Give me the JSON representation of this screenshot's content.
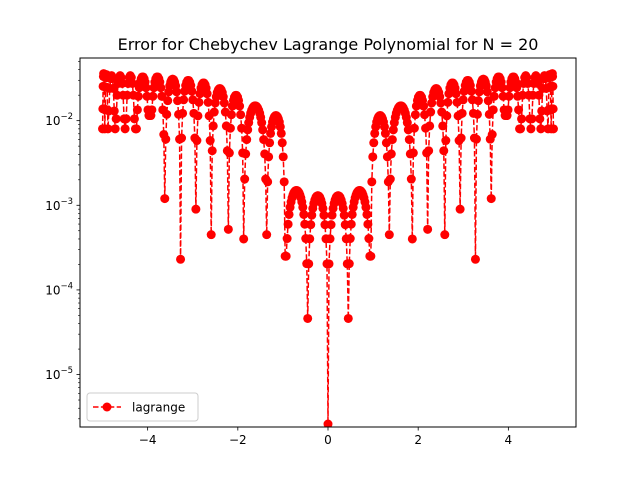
{
  "chart_data": {
    "type": "line",
    "title": "Error for Chebychev Lagrange Polynomial for N = 20",
    "xlabel": "",
    "ylabel": "",
    "xlim": [
      -5.5,
      5.5
    ],
    "ylim": [
      2.4e-06,
      0.055
    ],
    "yscale": "log",
    "x_ticks": [
      -4,
      -2,
      0,
      2,
      4
    ],
    "x_tick_labels": [
      "−4",
      "−2",
      "0",
      "2",
      "4"
    ],
    "y_ticks": [
      1e-05,
      0.0001,
      0.001,
      0.01
    ],
    "y_tick_labels": [
      "10",
      "10",
      "10",
      "10"
    ],
    "y_tick_exponents": [
      "−5",
      "−4",
      "−3",
      "−2"
    ],
    "grid": false,
    "legend_position": "lower-left",
    "series": [
      {
        "name": "lagrange",
        "color": "#ff0000",
        "linestyle": "dashed",
        "marker": "circle",
        "lobe_zeros": [
          -5.0,
          -4.95,
          -4.88,
          -4.72,
          -4.5,
          -4.27,
          -3.95,
          -3.62,
          -3.27,
          -2.93,
          -2.59,
          -2.21,
          -1.87,
          -1.36,
          -0.95,
          -0.45,
          0.0,
          0.45,
          0.95,
          1.36,
          1.87,
          2.21,
          2.59,
          2.93,
          3.27,
          3.62,
          3.95,
          4.27,
          4.5,
          4.72,
          4.88,
          4.95,
          5.0
        ],
        "lobe_peaks": [
          0.036,
          0.035,
          0.034,
          0.034,
          0.034,
          0.033,
          0.033,
          0.031,
          0.03,
          0.028,
          0.024,
          0.02,
          0.015,
          0.0115,
          0.0015,
          0.0013,
          0.0013,
          0.0015,
          0.0115,
          0.015,
          0.02,
          0.024,
          0.028,
          0.03,
          0.031,
          0.033,
          0.033,
          0.034,
          0.034,
          0.034,
          0.035,
          0.036
        ],
        "dip_minima": [
          0.008,
          0.0115,
          0.0012,
          0.00023,
          0.0009,
          0.00045,
          0.00052,
          0.0004,
          0.00045,
          0.00025,
          4.6e-05,
          2.5e-06,
          4.6e-05,
          0.00025,
          0.00045,
          0.0004,
          0.00052,
          0.00045,
          0.0009,
          0.00023,
          0.0012,
          0.0115,
          0.008
        ]
      }
    ]
  }
}
